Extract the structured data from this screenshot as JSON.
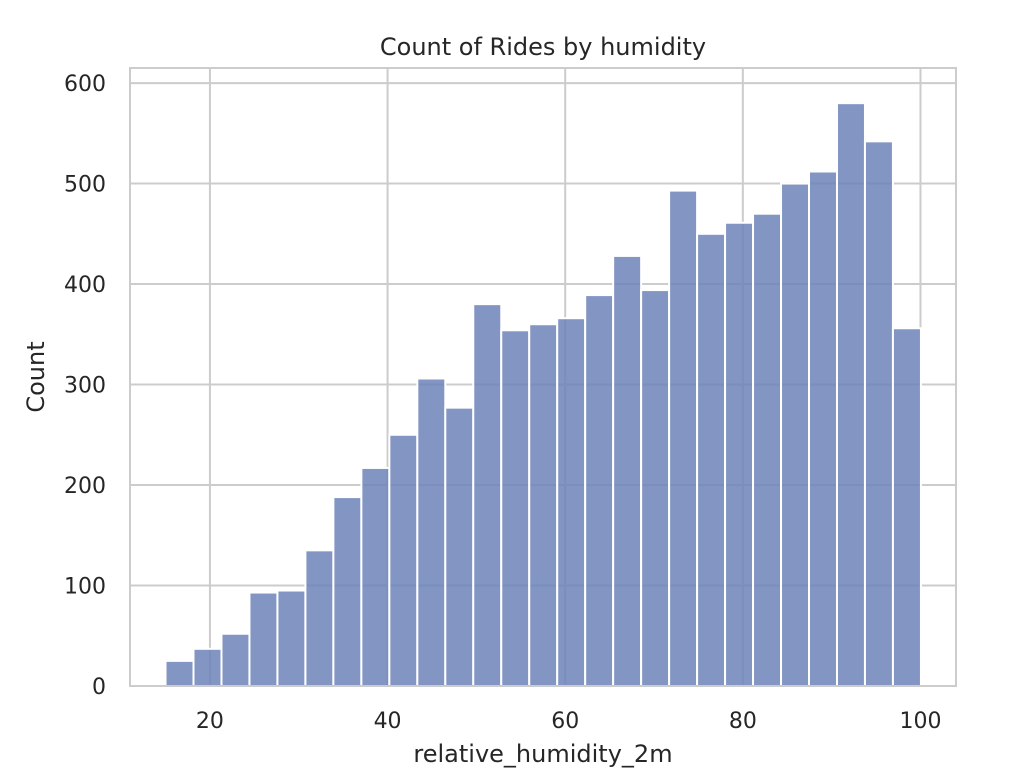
{
  "chart_data": {
    "type": "bar",
    "title": "Count of Rides by humidity",
    "xlabel": "relative_humidity_2m",
    "ylabel": "Count",
    "xlim": [
      11,
      104
    ],
    "ylim": [
      0,
      615
    ],
    "xticks": [
      20,
      40,
      60,
      80,
      100
    ],
    "yticks": [
      0,
      100,
      200,
      300,
      400,
      500,
      600
    ],
    "bin_width": 3.15,
    "bins_start": [
      15.0,
      18.15,
      21.3,
      24.45,
      27.6,
      30.75,
      33.9,
      37.05,
      40.2,
      43.35,
      46.5,
      49.65,
      52.8,
      55.95,
      59.1,
      62.25,
      65.4,
      68.55,
      71.7,
      74.85,
      78.0,
      81.15,
      84.3,
      87.45,
      90.6,
      93.75,
      96.9
    ],
    "values": [
      25,
      37,
      52,
      93,
      95,
      135,
      188,
      217,
      250,
      306,
      277,
      380,
      354,
      360,
      366,
      389,
      428,
      394,
      493,
      450,
      461,
      470,
      500,
      512,
      580,
      542,
      356
    ],
    "grid": true,
    "bar_color": "#6c82b9"
  }
}
